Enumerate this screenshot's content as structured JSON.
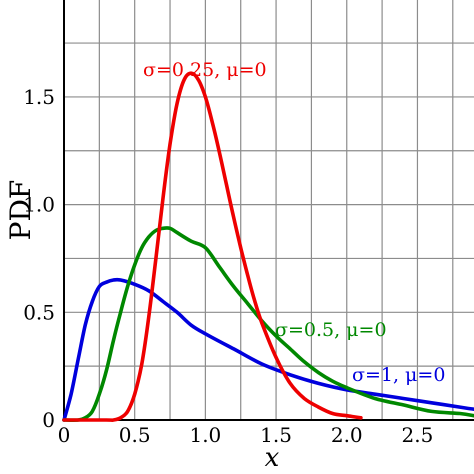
{
  "chart_data": {
    "type": "line",
    "xlabel": "x",
    "ylabel": "PDF",
    "xlim": [
      0,
      2.9
    ],
    "ylim": [
      0,
      1.95
    ],
    "grid": true,
    "x_ticks": [
      {
        "value": 0,
        "label": "0"
      },
      {
        "value": 0.5,
        "label": "0.5"
      },
      {
        "value": 1.0,
        "label": "1.0"
      },
      {
        "value": 1.5,
        "label": "1.5"
      },
      {
        "value": 2.0,
        "label": "2.0"
      },
      {
        "value": 2.5,
        "label": "2.5"
      }
    ],
    "y_ticks": [
      {
        "value": 0,
        "label": "0"
      },
      {
        "value": 0.5,
        "label": "0.5"
      },
      {
        "value": 1.0,
        "label": "1.0"
      },
      {
        "value": 1.5,
        "label": "1.5"
      }
    ],
    "x_gridlines": [
      0.25,
      0.5,
      0.75,
      1.0,
      1.25,
      1.5,
      1.75,
      2.0,
      2.25,
      2.5,
      2.75
    ],
    "y_gridlines": [
      0.25,
      0.5,
      0.75,
      1.0,
      1.25,
      1.5,
      1.75
    ],
    "series": [
      {
        "name": "σ=0.25, μ=0",
        "color": "#ee0000",
        "sigma": 0.25,
        "mu": 0,
        "x": [
          0.3,
          0.35,
          0.4,
          0.45,
          0.5,
          0.55,
          0.6,
          0.65,
          0.7,
          0.75,
          0.8,
          0.85,
          0.9,
          0.95,
          1.0,
          1.05,
          1.1,
          1.15,
          1.2,
          1.25,
          1.3,
          1.35,
          1.4,
          1.5,
          1.6,
          1.7,
          1.8,
          1.9,
          2.0,
          2.1
        ],
        "y": [
          0.0,
          0.0,
          0.01,
          0.04,
          0.12,
          0.26,
          0.48,
          0.75,
          1.03,
          1.28,
          1.47,
          1.58,
          1.61,
          1.58,
          1.5,
          1.38,
          1.24,
          1.09,
          0.94,
          0.8,
          0.67,
          0.55,
          0.45,
          0.29,
          0.17,
          0.1,
          0.06,
          0.03,
          0.02,
          0.01
        ]
      },
      {
        "name": "σ=0.5, μ=0",
        "color": "#008800",
        "sigma": 0.5,
        "mu": 0,
        "x": [
          0.1,
          0.15,
          0.2,
          0.25,
          0.3,
          0.35,
          0.4,
          0.45,
          0.5,
          0.55,
          0.6,
          0.65,
          0.7,
          0.75,
          0.8,
          0.9,
          1.0,
          1.1,
          1.2,
          1.3,
          1.4,
          1.5,
          1.6,
          1.7,
          1.8,
          1.9,
          2.0,
          2.2,
          2.4,
          2.6,
          2.8,
          2.9
        ],
        "y": [
          0.0,
          0.01,
          0.04,
          0.12,
          0.23,
          0.37,
          0.5,
          0.62,
          0.72,
          0.8,
          0.85,
          0.88,
          0.89,
          0.89,
          0.87,
          0.83,
          0.8,
          0.71,
          0.62,
          0.54,
          0.46,
          0.39,
          0.33,
          0.27,
          0.22,
          0.18,
          0.15,
          0.1,
          0.07,
          0.04,
          0.03,
          0.02
        ]
      },
      {
        "name": "σ=1, μ=0",
        "color": "#0000dd",
        "sigma": 1,
        "mu": 0,
        "x": [
          0.0,
          0.05,
          0.1,
          0.15,
          0.2,
          0.25,
          0.3,
          0.35,
          0.4,
          0.5,
          0.6,
          0.7,
          0.8,
          0.9,
          1.0,
          1.2,
          1.4,
          1.6,
          1.8,
          2.0,
          2.2,
          2.4,
          2.6,
          2.8,
          2.9
        ],
        "y": [
          0.0,
          0.12,
          0.28,
          0.44,
          0.55,
          0.62,
          0.64,
          0.65,
          0.65,
          0.63,
          0.6,
          0.55,
          0.5,
          0.44,
          0.4,
          0.33,
          0.26,
          0.21,
          0.17,
          0.14,
          0.12,
          0.1,
          0.08,
          0.06,
          0.05
        ]
      }
    ]
  }
}
